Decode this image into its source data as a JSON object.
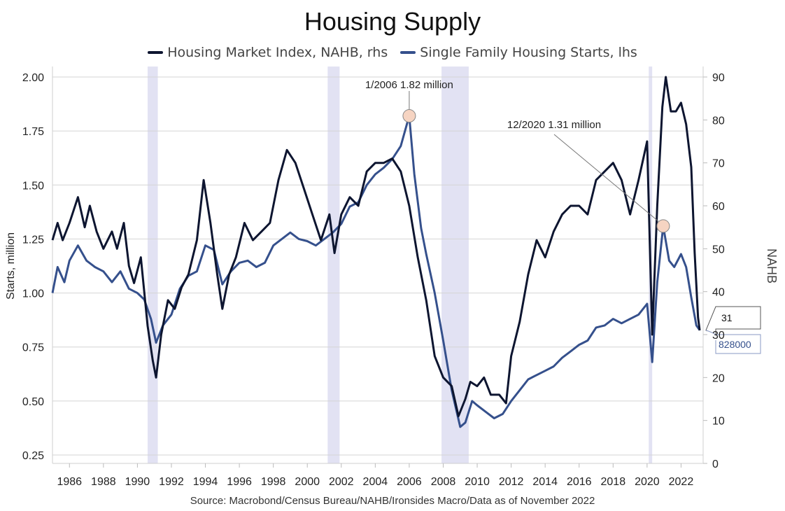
{
  "chart_data": {
    "type": "line",
    "title": "Housing Supply",
    "source": "Source: Macrobond/Census Bureau/NAHB/Ironsides Macro/Data as of November 2022",
    "x_range": [
      1985.0,
      2023.3
    ],
    "x_ticks": [
      "1986",
      "1988",
      "1990",
      "1992",
      "1994",
      "1996",
      "1998",
      "2000",
      "2002",
      "2004",
      "2006",
      "2008",
      "2010",
      "2012",
      "2014",
      "2016",
      "2018",
      "2020",
      "2022"
    ],
    "left_axis": {
      "label": "Starts, million",
      "range": [
        0.25,
        2.0
      ],
      "ticks": [
        "0.25",
        "0.50",
        "0.75",
        "1.00",
        "1.25",
        "1.50",
        "1.75",
        "2.00"
      ]
    },
    "right_axis": {
      "label": "NAHB",
      "range": [
        0,
        90
      ],
      "ticks": [
        "0",
        "10",
        "20",
        "30",
        "40",
        "50",
        "60",
        "70",
        "80",
        "90"
      ]
    },
    "grid": true,
    "legend_position": "top-center",
    "recessions": [
      [
        1990.6,
        1991.2
      ],
      [
        2001.2,
        2001.9
      ],
      [
        2007.9,
        2009.5
      ],
      [
        2020.1,
        2020.3
      ]
    ],
    "series": [
      {
        "name": "Housing Market Index, NAHB, rhs",
        "axis": "right",
        "color": "#0d1530",
        "points": [
          [
            1985.0,
            52
          ],
          [
            1985.3,
            56
          ],
          [
            1985.6,
            52
          ],
          [
            1986.0,
            56
          ],
          [
            1986.5,
            62
          ],
          [
            1986.9,
            55
          ],
          [
            1987.2,
            60
          ],
          [
            1987.6,
            54
          ],
          [
            1988.0,
            50
          ],
          [
            1988.5,
            54
          ],
          [
            1988.8,
            50
          ],
          [
            1989.2,
            56
          ],
          [
            1989.5,
            46
          ],
          [
            1989.8,
            42
          ],
          [
            1990.2,
            48
          ],
          [
            1990.6,
            32
          ],
          [
            1990.9,
            24
          ],
          [
            1991.1,
            20
          ],
          [
            1991.4,
            30
          ],
          [
            1991.8,
            38
          ],
          [
            1992.2,
            36
          ],
          [
            1992.6,
            41
          ],
          [
            1993.0,
            44
          ],
          [
            1993.5,
            52
          ],
          [
            1993.9,
            66
          ],
          [
            1994.3,
            56
          ],
          [
            1994.7,
            44
          ],
          [
            1995.0,
            36
          ],
          [
            1995.4,
            44
          ],
          [
            1995.8,
            48
          ],
          [
            1996.3,
            56
          ],
          [
            1996.8,
            52
          ],
          [
            1997.3,
            54
          ],
          [
            1997.8,
            56
          ],
          [
            1998.3,
            66
          ],
          [
            1998.8,
            73
          ],
          [
            1999.3,
            70
          ],
          [
            1999.8,
            64
          ],
          [
            2000.3,
            58
          ],
          [
            2000.8,
            52
          ],
          [
            2001.3,
            58
          ],
          [
            2001.6,
            49
          ],
          [
            2002.0,
            58
          ],
          [
            2002.5,
            62
          ],
          [
            2003.0,
            60
          ],
          [
            2003.5,
            68
          ],
          [
            2004.0,
            70
          ],
          [
            2004.5,
            70
          ],
          [
            2005.0,
            71
          ],
          [
            2005.5,
            68
          ],
          [
            2006.0,
            60
          ],
          [
            2006.5,
            48
          ],
          [
            2007.0,
            38
          ],
          [
            2007.5,
            25
          ],
          [
            2008.0,
            20
          ],
          [
            2008.5,
            18
          ],
          [
            2008.9,
            11
          ],
          [
            2009.3,
            15
          ],
          [
            2009.6,
            19
          ],
          [
            2010.0,
            18
          ],
          [
            2010.4,
            20
          ],
          [
            2010.8,
            16
          ],
          [
            2011.3,
            16
          ],
          [
            2011.7,
            14
          ],
          [
            2012.0,
            25
          ],
          [
            2012.5,
            33
          ],
          [
            2013.0,
            44
          ],
          [
            2013.5,
            52
          ],
          [
            2014.0,
            48
          ],
          [
            2014.5,
            54
          ],
          [
            2015.0,
            58
          ],
          [
            2015.5,
            60
          ],
          [
            2016.0,
            60
          ],
          [
            2016.5,
            58
          ],
          [
            2017.0,
            66
          ],
          [
            2017.5,
            68
          ],
          [
            2018.0,
            70
          ],
          [
            2018.5,
            66
          ],
          [
            2019.0,
            58
          ],
          [
            2019.5,
            66
          ],
          [
            2020.0,
            75
          ],
          [
            2020.3,
            30
          ],
          [
            2020.6,
            60
          ],
          [
            2020.9,
            83
          ],
          [
            2021.1,
            90
          ],
          [
            2021.4,
            82
          ],
          [
            2021.7,
            82
          ],
          [
            2022.0,
            84
          ],
          [
            2022.3,
            79
          ],
          [
            2022.6,
            69
          ],
          [
            2022.8,
            49
          ],
          [
            2023.0,
            34
          ],
          [
            2023.1,
            31
          ]
        ]
      },
      {
        "name": "Single Family Housing Starts, lhs",
        "axis": "left",
        "color": "#35508c",
        "points": [
          [
            1985.0,
            1.0
          ],
          [
            1985.3,
            1.12
          ],
          [
            1985.7,
            1.05
          ],
          [
            1986.0,
            1.15
          ],
          [
            1986.5,
            1.22
          ],
          [
            1987.0,
            1.15
          ],
          [
            1987.5,
            1.12
          ],
          [
            1988.0,
            1.1
          ],
          [
            1988.5,
            1.05
          ],
          [
            1989.0,
            1.1
          ],
          [
            1989.5,
            1.02
          ],
          [
            1990.0,
            1.0
          ],
          [
            1990.4,
            0.97
          ],
          [
            1990.8,
            0.88
          ],
          [
            1991.1,
            0.77
          ],
          [
            1991.5,
            0.85
          ],
          [
            1992.0,
            0.9
          ],
          [
            1992.5,
            1.02
          ],
          [
            1993.0,
            1.08
          ],
          [
            1993.5,
            1.1
          ],
          [
            1994.0,
            1.22
          ],
          [
            1994.5,
            1.2
          ],
          [
            1995.0,
            1.04
          ],
          [
            1995.5,
            1.1
          ],
          [
            1996.0,
            1.14
          ],
          [
            1996.5,
            1.15
          ],
          [
            1997.0,
            1.12
          ],
          [
            1997.5,
            1.14
          ],
          [
            1998.0,
            1.22
          ],
          [
            1998.5,
            1.25
          ],
          [
            1999.0,
            1.28
          ],
          [
            1999.5,
            1.25
          ],
          [
            2000.0,
            1.24
          ],
          [
            2000.5,
            1.22
          ],
          [
            2001.0,
            1.25
          ],
          [
            2001.5,
            1.28
          ],
          [
            2002.0,
            1.32
          ],
          [
            2002.5,
            1.4
          ],
          [
            2003.0,
            1.42
          ],
          [
            2003.5,
            1.5
          ],
          [
            2004.0,
            1.55
          ],
          [
            2004.5,
            1.58
          ],
          [
            2005.0,
            1.62
          ],
          [
            2005.5,
            1.68
          ],
          [
            2006.0,
            1.82
          ],
          [
            2006.3,
            1.55
          ],
          [
            2006.7,
            1.3
          ],
          [
            2007.0,
            1.18
          ],
          [
            2007.5,
            1.0
          ],
          [
            2008.0,
            0.78
          ],
          [
            2008.5,
            0.55
          ],
          [
            2009.0,
            0.38
          ],
          [
            2009.3,
            0.4
          ],
          [
            2009.7,
            0.5
          ],
          [
            2010.0,
            0.48
          ],
          [
            2010.5,
            0.45
          ],
          [
            2011.0,
            0.42
          ],
          [
            2011.5,
            0.44
          ],
          [
            2012.0,
            0.5
          ],
          [
            2012.5,
            0.55
          ],
          [
            2013.0,
            0.6
          ],
          [
            2013.5,
            0.62
          ],
          [
            2014.0,
            0.64
          ],
          [
            2014.5,
            0.66
          ],
          [
            2015.0,
            0.7
          ],
          [
            2015.5,
            0.73
          ],
          [
            2016.0,
            0.76
          ],
          [
            2016.5,
            0.78
          ],
          [
            2017.0,
            0.84
          ],
          [
            2017.5,
            0.85
          ],
          [
            2018.0,
            0.88
          ],
          [
            2018.5,
            0.86
          ],
          [
            2019.0,
            0.88
          ],
          [
            2019.5,
            0.9
          ],
          [
            2020.0,
            0.95
          ],
          [
            2020.3,
            0.68
          ],
          [
            2020.6,
            1.05
          ],
          [
            2020.95,
            1.31
          ],
          [
            2021.3,
            1.15
          ],
          [
            2021.6,
            1.12
          ],
          [
            2022.0,
            1.18
          ],
          [
            2022.3,
            1.12
          ],
          [
            2022.6,
            0.98
          ],
          [
            2022.9,
            0.85
          ],
          [
            2023.1,
            0.828
          ]
        ]
      }
    ],
    "annotations": [
      {
        "text": "1/2006 1.82 million",
        "x": 2006.0,
        "y": 1.82
      },
      {
        "text": "12/2020 1.31 million",
        "x": 2020.95,
        "y": 1.31
      }
    ],
    "end_labels": {
      "nahb": "31",
      "starts": "828000"
    }
  }
}
